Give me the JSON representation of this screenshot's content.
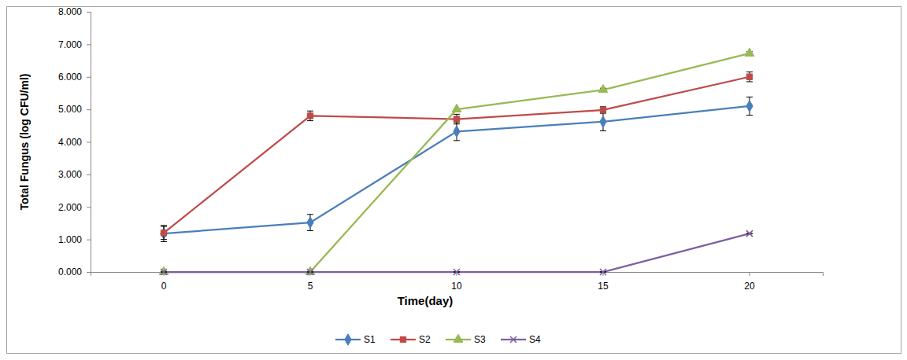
{
  "chart_data": {
    "type": "line",
    "x_label": "Time(day)",
    "y_label": "Total Fungus (log CFU/ml)",
    "categories": [
      "0",
      "5",
      "10",
      "15",
      "20"
    ],
    "ylim": [
      0,
      8
    ],
    "yticks": [
      {
        "value": 0,
        "label": "0.000"
      },
      {
        "value": 1,
        "label": "1.000"
      },
      {
        "value": 2,
        "label": "2.000"
      },
      {
        "value": 3,
        "label": "3.000"
      },
      {
        "value": 4,
        "label": "4.000"
      },
      {
        "value": 5,
        "label": "5.000"
      },
      {
        "value": 6,
        "label": "6.000"
      },
      {
        "value": 7,
        "label": "7.000"
      },
      {
        "value": 8,
        "label": "8.000"
      }
    ],
    "grid": false,
    "legend": "bottom",
    "series": [
      {
        "name": "S1",
        "color": "#4a7ebb",
        "marker": "diamond",
        "values": [
          1.18,
          1.52,
          4.32,
          4.62,
          5.1
        ],
        "errors": [
          0.25,
          0.25,
          0.28,
          0.28,
          0.28
        ]
      },
      {
        "name": "S2",
        "color": "#be4b48",
        "marker": "square",
        "values": [
          1.2,
          4.8,
          4.7,
          4.98,
          6.0
        ],
        "errors": [
          0.2,
          0.15,
          0.15,
          0.1,
          0.15
        ]
      },
      {
        "name": "S3",
        "color": "#98b954",
        "marker": "triangle",
        "values": [
          0,
          0,
          5.0,
          5.6,
          6.72
        ],
        "errors": [
          0,
          0,
          0,
          0.05,
          0.05
        ]
      },
      {
        "name": "S4",
        "color": "#7d60a0",
        "marker": "x",
        "values": [
          0,
          0,
          0,
          0,
          1.18
        ],
        "errors": [
          0,
          0,
          0,
          0,
          0
        ]
      }
    ]
  }
}
